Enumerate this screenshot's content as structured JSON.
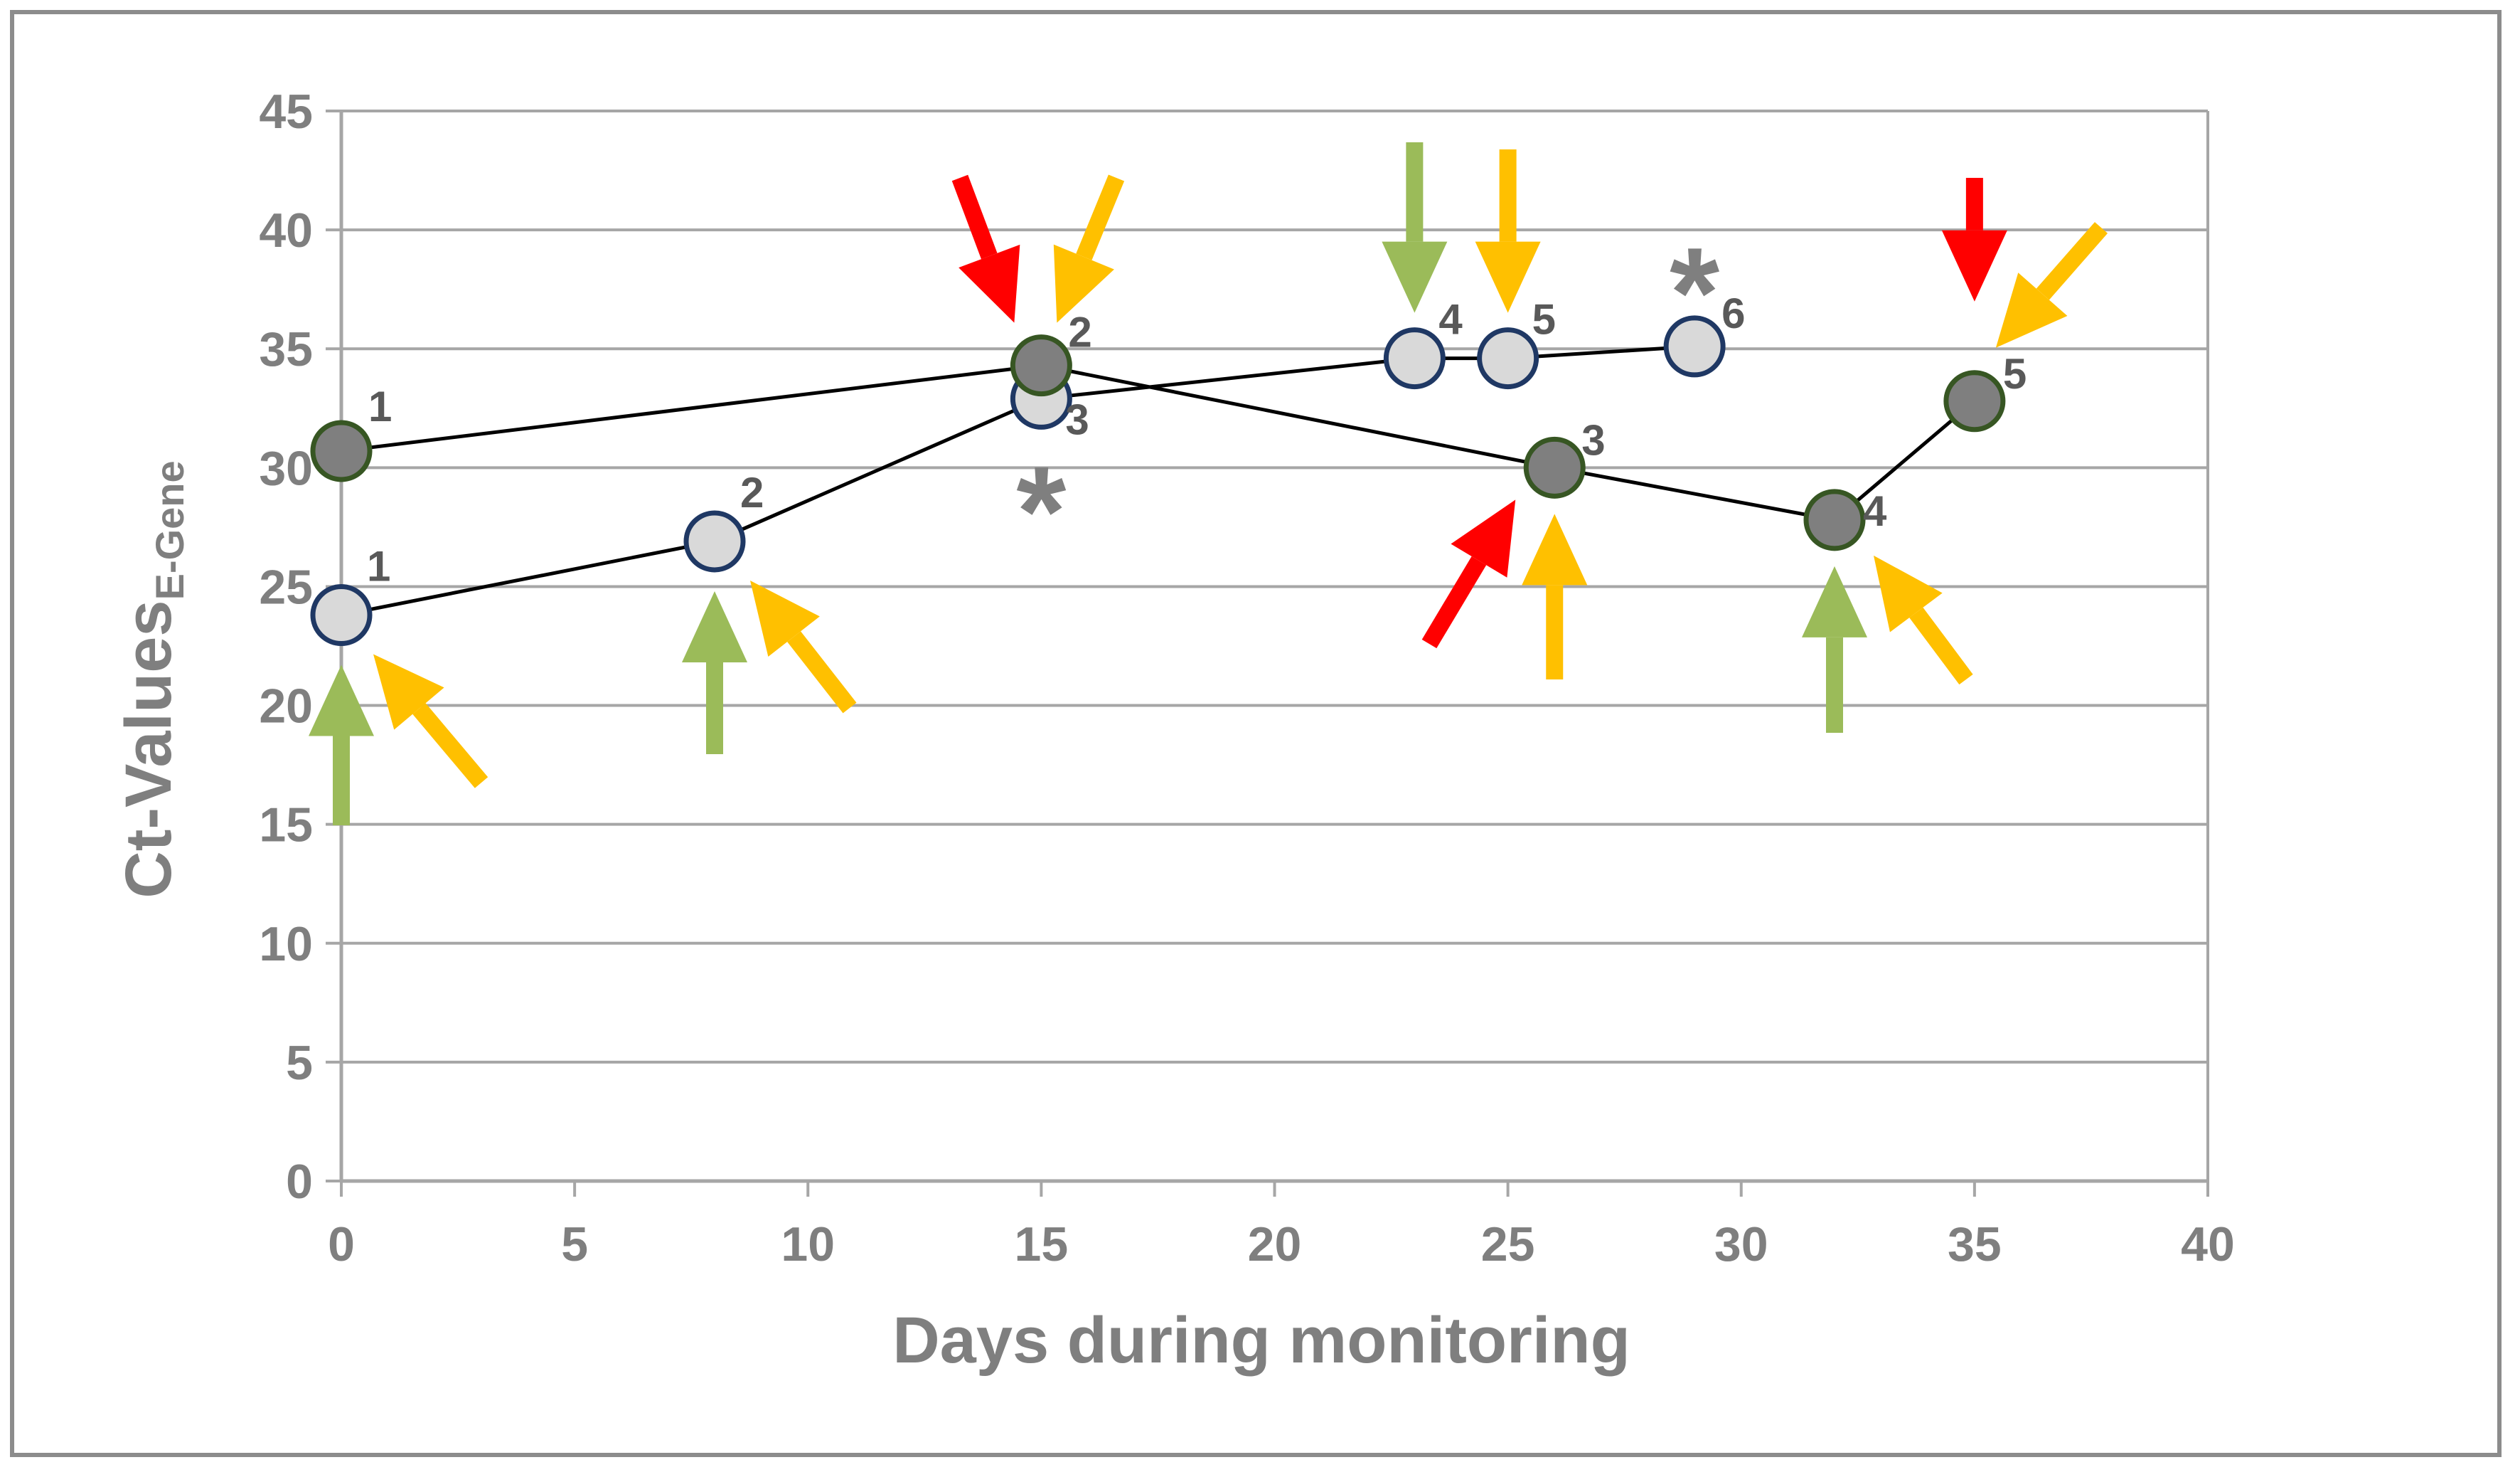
{
  "chart_data": {
    "type": "line",
    "title": "",
    "xlabel": "Days during monitoring",
    "ylabel": "Ct-Values",
    "ylabel_subscript": "E-Gene",
    "xlim": [
      0,
      40
    ],
    "ylim": [
      0,
      45
    ],
    "x_ticks": [
      0,
      5,
      10,
      15,
      20,
      25,
      30,
      35,
      40
    ],
    "y_ticks": [
      0,
      5,
      10,
      15,
      20,
      25,
      30,
      35,
      40,
      45
    ],
    "grid": "horizontal",
    "series": [
      {
        "name": "light series",
        "marker_color": "#d9d9d9",
        "marker_edge": "#1f3864",
        "points": [
          {
            "x": 0,
            "y": 23.8,
            "label": "1"
          },
          {
            "x": 8,
            "y": 26.9,
            "label": "2"
          },
          {
            "x": 15,
            "y": 32.9,
            "label": "3"
          },
          {
            "x": 23,
            "y": 34.6,
            "label": "4"
          },
          {
            "x": 25,
            "y": 34.6,
            "label": "5"
          },
          {
            "x": 29,
            "y": 35.1,
            "label": "6"
          }
        ]
      },
      {
        "name": "dark series",
        "marker_color": "#7f7f7f",
        "marker_edge": "#375623",
        "points": [
          {
            "x": 0,
            "y": 30.7,
            "label": "1"
          },
          {
            "x": 15,
            "y": 34.3,
            "label": "2"
          },
          {
            "x": 26,
            "y": 30.0,
            "label": "3"
          },
          {
            "x": 32,
            "y": 27.8,
            "label": "4"
          },
          {
            "x": 35,
            "y": 32.8,
            "label": "5"
          }
        ]
      }
    ],
    "annotations": [
      {
        "symbol": "*",
        "x": 15,
        "y": 29.0
      },
      {
        "symbol": "*",
        "x": 29,
        "y": 38.2
      }
    ],
    "arrow_colors": {
      "red": "#ff0000",
      "yellow": "#ffc000",
      "green": "#9bbb59"
    }
  }
}
